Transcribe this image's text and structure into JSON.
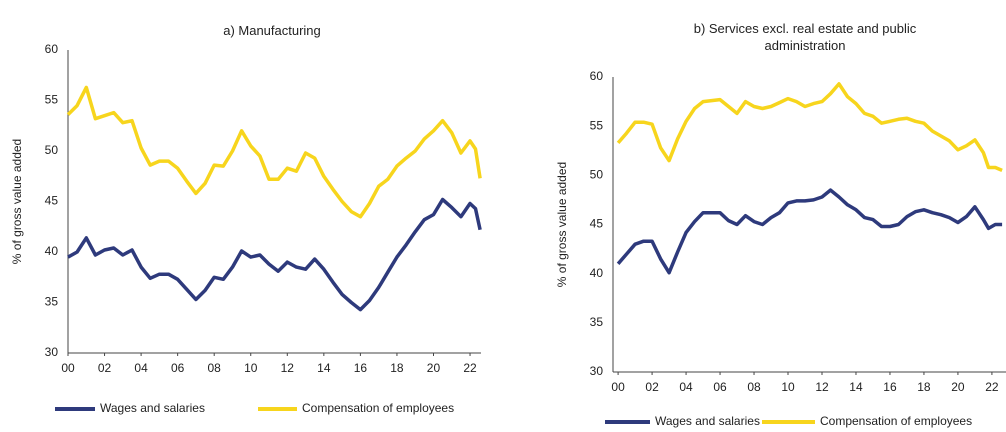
{
  "chart_data": [
    {
      "type": "line",
      "title": "a) Manufacturing",
      "y_label": "% of gross value added",
      "x": [
        2000,
        2000.5,
        2001,
        2001.5,
        2002,
        2002.5,
        2003,
        2003.5,
        2004,
        2004.5,
        2005,
        2005.5,
        2006,
        2006.5,
        2007,
        2007.5,
        2008,
        2008.5,
        2009,
        2009.5,
        2010,
        2010.5,
        2011,
        2011.5,
        2012,
        2012.5,
        2013,
        2013.5,
        2014,
        2014.5,
        2015,
        2015.5,
        2016,
        2016.5,
        2017,
        2017.5,
        2018,
        2018.5,
        2019,
        2019.5,
        2020,
        2020.5,
        2021,
        2021.5,
        2022,
        2022.3,
        2022.55
      ],
      "series": [
        {
          "name": "Wages and salaries",
          "color": "#2e3a7c",
          "values": [
            39.5,
            40.0,
            41.4,
            39.7,
            40.2,
            40.4,
            39.7,
            40.2,
            38.5,
            37.4,
            37.8,
            37.8,
            37.3,
            36.3,
            35.3,
            36.2,
            37.5,
            37.3,
            38.5,
            40.1,
            39.5,
            39.7,
            38.8,
            38.1,
            39.0,
            38.5,
            38.3,
            39.3,
            38.3,
            37.0,
            35.8,
            35.0,
            34.3,
            35.2,
            36.5,
            38.0,
            39.5,
            40.7,
            42.0,
            43.2,
            43.7,
            45.2,
            44.4,
            43.5,
            44.8,
            44.3,
            42.2
          ]
        },
        {
          "name": "Compensation of employees",
          "color": "#f7d51d",
          "values": [
            53.6,
            54.5,
            56.3,
            53.2,
            53.5,
            53.8,
            52.8,
            53.0,
            50.3,
            48.6,
            49.0,
            49.0,
            48.3,
            47.0,
            45.8,
            46.8,
            48.6,
            48.5,
            50.0,
            52.0,
            50.5,
            49.5,
            47.2,
            47.2,
            48.3,
            48.0,
            49.8,
            49.3,
            47.5,
            46.2,
            45.0,
            44.0,
            43.5,
            44.8,
            46.5,
            47.2,
            48.5,
            49.3,
            50.0,
            51.2,
            52.0,
            53.0,
            51.8,
            49.8,
            51.0,
            50.2,
            47.3
          ]
        }
      ],
      "xlim": [
        2000,
        2022.6
      ],
      "xticks": [
        {
          "value": 2000,
          "label": "00"
        },
        {
          "value": 2002,
          "label": "02"
        },
        {
          "value": 2004,
          "label": "04"
        },
        {
          "value": 2006,
          "label": "06"
        },
        {
          "value": 2008,
          "label": "08"
        },
        {
          "value": 2010,
          "label": "10"
        },
        {
          "value": 2012,
          "label": "12"
        },
        {
          "value": 2014,
          "label": "14"
        },
        {
          "value": 2016,
          "label": "16"
        },
        {
          "value": 2018,
          "label": "18"
        },
        {
          "value": 2020,
          "label": "20"
        },
        {
          "value": 2022,
          "label": "22"
        }
      ],
      "ylim": [
        30,
        60
      ],
      "yticks": [
        30,
        35,
        40,
        45,
        50,
        55,
        60
      ],
      "grid": false,
      "legend": "bottom"
    },
    {
      "type": "line",
      "title": "b) Services excl. real estate and public administration",
      "y_label": "% of gross value added",
      "x": [
        2000,
        2000.5,
        2001,
        2001.5,
        2002,
        2002.5,
        2003,
        2003.5,
        2004,
        2004.5,
        2005,
        2005.5,
        2006,
        2006.5,
        2007,
        2007.5,
        2008,
        2008.5,
        2009,
        2009.5,
        2010,
        2010.5,
        2011,
        2011.5,
        2012,
        2012.5,
        2013,
        2013.5,
        2014,
        2014.5,
        2015,
        2015.5,
        2016,
        2016.5,
        2017,
        2017.5,
        2018,
        2018.5,
        2019,
        2019.5,
        2020,
        2020.5,
        2021,
        2021.5,
        2021.8,
        2022.2,
        2022.6
      ],
      "series": [
        {
          "name": "Wages and salaries",
          "color": "#2e3a7c",
          "values": [
            41.0,
            42.0,
            43.0,
            43.3,
            43.3,
            41.5,
            40.1,
            42.2,
            44.2,
            45.3,
            46.2,
            46.2,
            46.2,
            45.4,
            45.0,
            45.9,
            45.3,
            45.0,
            45.7,
            46.2,
            47.2,
            47.4,
            47.4,
            47.5,
            47.8,
            48.5,
            47.8,
            47.0,
            46.5,
            45.7,
            45.5,
            44.8,
            44.8,
            45.0,
            45.8,
            46.3,
            46.5,
            46.2,
            46.0,
            45.7,
            45.2,
            45.8,
            46.8,
            45.5,
            44.6,
            45.0,
            45.0
          ]
        },
        {
          "name": "Compensation of employees",
          "color": "#f7d51d",
          "values": [
            53.3,
            54.3,
            55.4,
            55.4,
            55.2,
            52.8,
            51.5,
            53.7,
            55.5,
            56.8,
            57.5,
            57.6,
            57.7,
            57.0,
            56.3,
            57.5,
            57.0,
            56.8,
            57.0,
            57.4,
            57.8,
            57.5,
            57.0,
            57.3,
            57.5,
            58.3,
            59.3,
            58.0,
            57.3,
            56.3,
            56.0,
            55.3,
            55.5,
            55.7,
            55.8,
            55.5,
            55.3,
            54.5,
            54.0,
            53.5,
            52.6,
            53.0,
            53.6,
            52.3,
            50.8,
            50.8,
            50.5
          ]
        }
      ],
      "xlim": [
        1999.7,
        2023.3
      ],
      "xticks": [
        {
          "value": 2000,
          "label": "00"
        },
        {
          "value": 2002,
          "label": "02"
        },
        {
          "value": 2004,
          "label": "04"
        },
        {
          "value": 2006,
          "label": "06"
        },
        {
          "value": 2008,
          "label": "08"
        },
        {
          "value": 2010,
          "label": "10"
        },
        {
          "value": 2012,
          "label": "12"
        },
        {
          "value": 2014,
          "label": "14"
        },
        {
          "value": 2016,
          "label": "16"
        },
        {
          "value": 2018,
          "label": "18"
        },
        {
          "value": 2020,
          "label": "20"
        },
        {
          "value": 2022,
          "label": "22"
        }
      ],
      "ylim": [
        30,
        60
      ],
      "yticks": [
        30,
        35,
        40,
        45,
        50,
        55,
        60
      ],
      "grid": false,
      "legend": "bottom"
    }
  ]
}
